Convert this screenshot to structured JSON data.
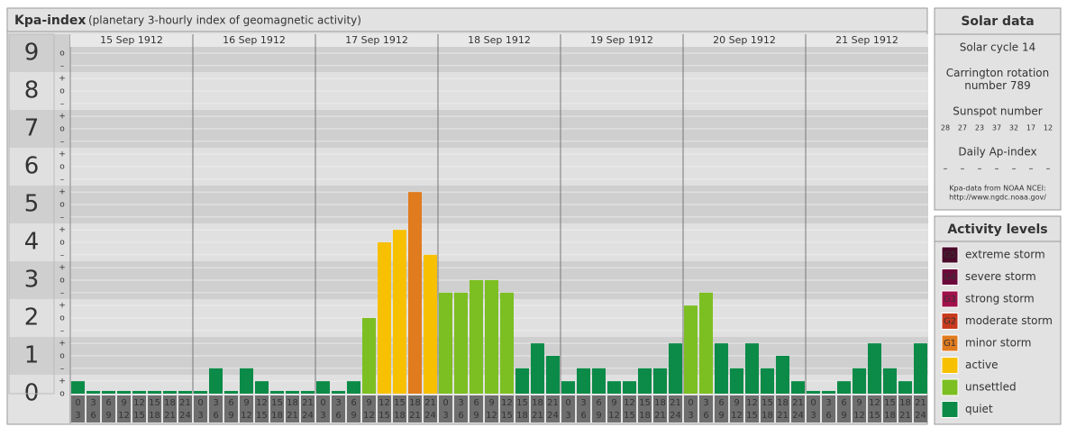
{
  "chart_data": {
    "type": "bar",
    "title": "Kpa-index",
    "subtitle": "(planetary 3-hourly index of geomagnetic activity)",
    "ylim": [
      0,
      9.5
    ],
    "yticks": [
      0,
      1,
      2,
      3,
      4,
      5,
      6,
      7,
      8,
      9
    ],
    "minor_ticks": [
      {
        "value": 9,
        "label": "o"
      },
      {
        "value": 8.67,
        "label": "–"
      },
      {
        "value": 8.33,
        "label": "+"
      },
      {
        "value": 8,
        "label": "o"
      },
      {
        "value": 7.67,
        "label": "–"
      },
      {
        "value": 7.33,
        "label": "+"
      },
      {
        "value": 7,
        "label": "o"
      },
      {
        "value": 6.67,
        "label": "–"
      },
      {
        "value": 6.33,
        "label": "+"
      },
      {
        "value": 6,
        "label": "o"
      },
      {
        "value": 5.67,
        "label": "–"
      },
      {
        "value": 5.33,
        "label": "+"
      },
      {
        "value": 5,
        "label": "o"
      },
      {
        "value": 4.67,
        "label": "–"
      },
      {
        "value": 4.33,
        "label": "+"
      },
      {
        "value": 4,
        "label": "o"
      },
      {
        "value": 3.67,
        "label": "–"
      },
      {
        "value": 3.33,
        "label": "+"
      },
      {
        "value": 3,
        "label": "o"
      },
      {
        "value": 2.67,
        "label": "–"
      },
      {
        "value": 2.33,
        "label": "+"
      },
      {
        "value": 2,
        "label": "o"
      },
      {
        "value": 1.67,
        "label": "–"
      },
      {
        "value": 1.33,
        "label": "+"
      },
      {
        "value": 1,
        "label": "o"
      },
      {
        "value": 0.67,
        "label": "–"
      },
      {
        "value": 0.33,
        "label": "+"
      },
      {
        "value": 0,
        "label": "o"
      }
    ],
    "intervals": [
      [
        0,
        3
      ],
      [
        3,
        6
      ],
      [
        6,
        9
      ],
      [
        9,
        12
      ],
      [
        12,
        15
      ],
      [
        15,
        18
      ],
      [
        18,
        21
      ],
      [
        21,
        24
      ]
    ],
    "series": [
      {
        "name": "15 Sep 1912",
        "values": [
          0.33,
          0,
          0,
          0,
          0,
          0,
          0,
          0
        ],
        "colors": [
          "#0c8b48",
          "#0c8b48",
          "#0c8b48",
          "#0c8b48",
          "#0c8b48",
          "#0c8b48",
          "#0c8b48",
          "#0c8b48"
        ]
      },
      {
        "name": "16 Sep 1912",
        "values": [
          0,
          0.67,
          0,
          0.67,
          0.33,
          0,
          0,
          0
        ],
        "colors": [
          "#0c8b48",
          "#0c8b48",
          "#0c8b48",
          "#0c8b48",
          "#0c8b48",
          "#0c8b48",
          "#0c8b48",
          "#0c8b48"
        ]
      },
      {
        "name": "17 Sep 1912",
        "values": [
          0.33,
          0,
          0.33,
          2,
          4,
          4.33,
          5.33,
          3.67
        ],
        "colors": [
          "#0c8b48",
          "#0c8b48",
          "#0c8b48",
          "#7cbf22",
          "#f7c000",
          "#f7c000",
          "#e07b1e",
          "#f7c000"
        ]
      },
      {
        "name": "18 Sep 1912",
        "values": [
          2.67,
          2.67,
          3,
          3,
          2.67,
          0.67,
          1.33,
          1
        ],
        "colors": [
          "#7cbf22",
          "#7cbf22",
          "#7cbf22",
          "#7cbf22",
          "#7cbf22",
          "#0c8b48",
          "#0c8b48",
          "#0c8b48"
        ]
      },
      {
        "name": "19 Sep 1912",
        "values": [
          0.33,
          0.67,
          0.67,
          0.33,
          0.33,
          0.67,
          0.67,
          1.33
        ],
        "colors": [
          "#0c8b48",
          "#0c8b48",
          "#0c8b48",
          "#0c8b48",
          "#0c8b48",
          "#0c8b48",
          "#0c8b48",
          "#0c8b48"
        ]
      },
      {
        "name": "20 Sep 1912",
        "values": [
          2.33,
          2.67,
          1.33,
          0.67,
          1.33,
          0.67,
          1,
          0.33
        ],
        "colors": [
          "#7cbf22",
          "#7cbf22",
          "#0c8b48",
          "#0c8b48",
          "#0c8b48",
          "#0c8b48",
          "#0c8b48",
          "#0c8b48"
        ]
      },
      {
        "name": "21 Sep 1912",
        "values": [
          0,
          0,
          0.33,
          0.67,
          1.33,
          0.67,
          0.33,
          1.33
        ],
        "colors": [
          "#0c8b48",
          "#0c8b48",
          "#0c8b48",
          "#0c8b48",
          "#0c8b48",
          "#0c8b48",
          "#0c8b48",
          "#0c8b48"
        ]
      }
    ]
  },
  "solar_data": {
    "title": "Solar data",
    "solar_cycle": "Solar cycle 14",
    "carrington": "Carrington rotation number 789",
    "sunspot_title": "Sunspot number",
    "sunspot_numbers": [
      28,
      27,
      23,
      37,
      32,
      17,
      12
    ],
    "ap_title": "Daily Ap-index",
    "ap_values": [
      "–",
      "–",
      "–",
      "–",
      "–",
      "–",
      "–"
    ],
    "source": "Kpa-data from NOAA NCEI:",
    "source_url": "http://www.ngdc.noaa.gov/"
  },
  "activity_levels": {
    "title": "Activity levels",
    "items": [
      {
        "badge": "G5",
        "label": "extreme storm",
        "color": "#4a0a2a"
      },
      {
        "badge": "G4",
        "label": "severe storm",
        "color": "#6b0a3a"
      },
      {
        "badge": "G3",
        "label": "strong storm",
        "color": "#a0104a"
      },
      {
        "badge": "G2",
        "label": "moderate storm",
        "color": "#c83a1e"
      },
      {
        "badge": "G1",
        "label": "minor storm",
        "color": "#e07b1e"
      },
      {
        "label": "active",
        "color": "#f7c000"
      },
      {
        "label": "unsettled",
        "color": "#7cbf22"
      },
      {
        "label": "quiet",
        "color": "#0c8b48"
      }
    ]
  }
}
